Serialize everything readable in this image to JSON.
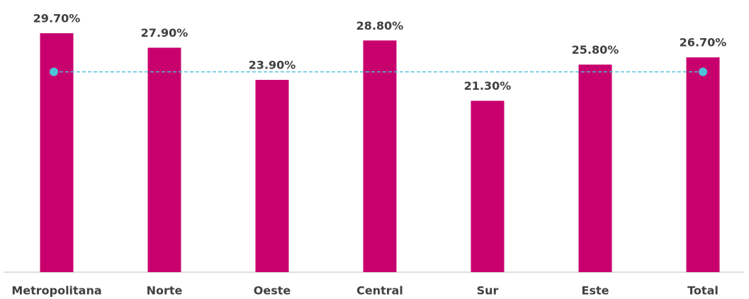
{
  "chart_data": {
    "type": "bar",
    "categories": [
      "Metropolitana",
      "Norte",
      "Oeste",
      "Central",
      "Sur",
      "Este",
      "Total"
    ],
    "values": [
      29.7,
      27.9,
      23.9,
      28.8,
      21.3,
      25.8,
      26.7
    ],
    "value_labels": [
      "29.70%",
      "27.90%",
      "23.90%",
      "28.80%",
      "21.30%",
      "25.80%",
      "26.70%"
    ],
    "color": "#c8006e",
    "ylim": [
      0,
      30
    ],
    "reference_line": {
      "value": 24.9,
      "color": "#4dc3d9"
    }
  }
}
